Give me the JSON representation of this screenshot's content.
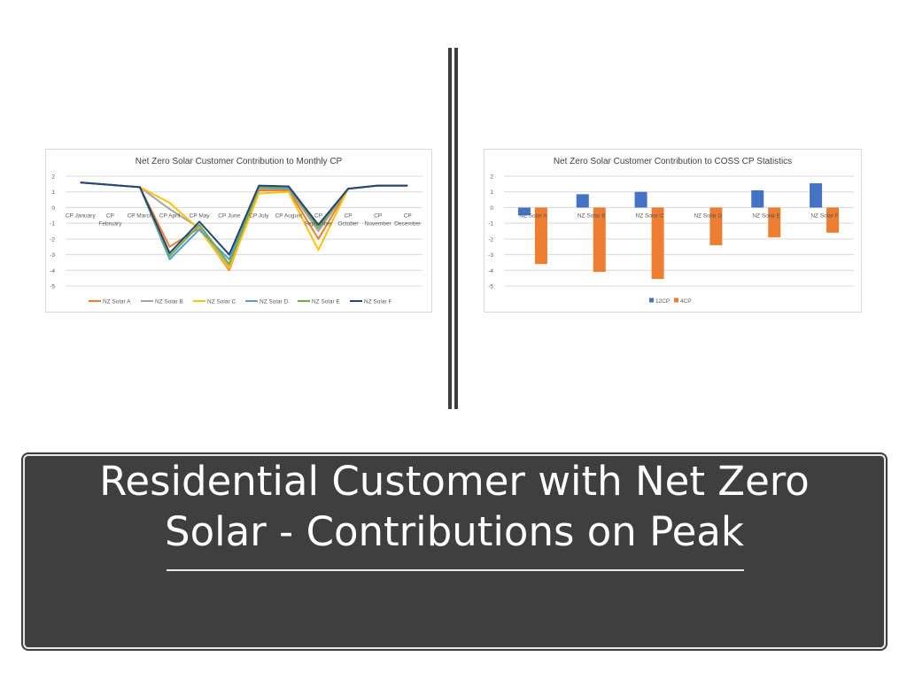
{
  "slide": {
    "title_line1": "Residential Customer with Net Zero",
    "title_line2": "Solar - Contributions on Peak"
  },
  "chart_data": [
    {
      "type": "line",
      "title": "Net Zero Solar Customer Contribution to Monthly CP",
      "categories": [
        "CP January",
        "CP February",
        "CP March",
        "CP April",
        "CP May",
        "CP June",
        "CP July",
        "CP August",
        "CP September",
        "CP October",
        "CP November",
        "CP December"
      ],
      "category_labels": [
        [
          "CP January"
        ],
        [
          "CP",
          "February"
        ],
        [
          "CP March"
        ],
        [
          "CP April"
        ],
        [
          "CP May"
        ],
        [
          "CP June"
        ],
        [
          "CP July"
        ],
        [
          "CP August"
        ],
        [
          "CP",
          "September"
        ],
        [
          "CP",
          "October"
        ],
        [
          "CP",
          "November"
        ],
        [
          "CP",
          "December"
        ]
      ],
      "ylim": [
        -5,
        2
      ],
      "yticks": [
        2,
        1,
        0,
        -1,
        -2,
        -3,
        -4,
        -5
      ],
      "grid": true,
      "legend_position": "bottom",
      "series": [
        {
          "name": "NZ Solar A",
          "color": "#ed7d31",
          "values": [
            1.6,
            1.45,
            1.3,
            -2.5,
            -1.3,
            -4.0,
            1.1,
            1.1,
            -2.0,
            1.2,
            1.4,
            1.4
          ]
        },
        {
          "name": "NZ Solar B",
          "color": "#a5a5a5",
          "values": [
            1.6,
            1.45,
            1.3,
            -0.1,
            -1.3,
            -3.8,
            1.2,
            1.2,
            -1.5,
            1.2,
            1.4,
            1.4
          ]
        },
        {
          "name": "NZ Solar C",
          "color": "#ffc000",
          "values": [
            1.6,
            1.45,
            1.3,
            0.3,
            -1.4,
            -3.9,
            0.9,
            1.0,
            -2.7,
            1.2,
            1.4,
            1.4
          ]
        },
        {
          "name": "NZ Solar D",
          "color": "#5b9bd5",
          "values": [
            1.6,
            1.45,
            1.3,
            -3.3,
            -1.4,
            -3.3,
            1.3,
            1.2,
            -1.1,
            1.2,
            1.4,
            1.4
          ]
        },
        {
          "name": "NZ Solar E",
          "color": "#70ad47",
          "values": [
            1.6,
            1.45,
            1.3,
            -3.1,
            -1.1,
            -3.6,
            1.3,
            1.3,
            -1.3,
            1.2,
            1.4,
            1.4
          ]
        },
        {
          "name": "NZ Solar F",
          "color": "#264478",
          "values": [
            1.6,
            1.45,
            1.3,
            -2.9,
            -0.9,
            -3.0,
            1.4,
            1.35,
            -1.1,
            1.2,
            1.4,
            1.4
          ]
        }
      ]
    },
    {
      "type": "bar",
      "title": "Net Zero Solar Customer Contribution to COSS CP Statistics",
      "categories": [
        "NZ Solar A",
        "NZ Solar B",
        "NZ Solar C",
        "NZ Solar D",
        "NZ Solar E",
        "NZ Solar F"
      ],
      "ylim": [
        -5,
        2
      ],
      "yticks": [
        2,
        1,
        0,
        -1,
        -2,
        -3,
        -4,
        -5
      ],
      "grid": true,
      "legend_position": "bottom",
      "series": [
        {
          "name": "12CP",
          "color": "#4472c4",
          "values": [
            -0.5,
            0.85,
            1.0,
            0.0,
            1.1,
            1.55
          ]
        },
        {
          "name": "4CP",
          "color": "#ed7d31",
          "values": [
            -3.6,
            -4.1,
            -4.55,
            -2.4,
            -1.9,
            -1.6
          ]
        }
      ]
    }
  ]
}
